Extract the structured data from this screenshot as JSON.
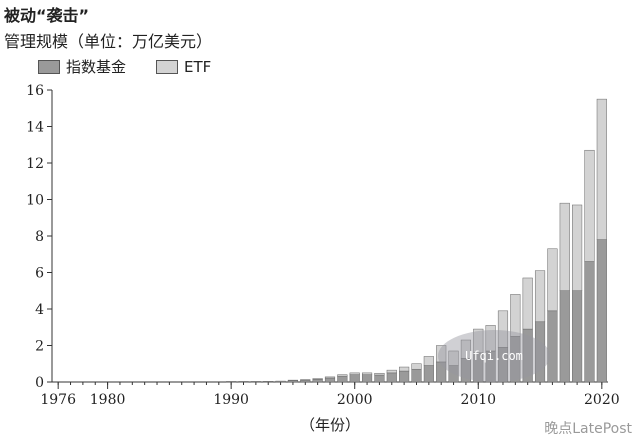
{
  "chart_data": {
    "type": "bar",
    "stacked": true,
    "title": "被动“袭击”",
    "ylabel": "管理规模（单位：万亿美元）",
    "xlabel": "（年份）",
    "ylim": [
      0,
      16
    ],
    "xlim": [
      1976,
      2021
    ],
    "yticks": [
      0,
      2,
      4,
      6,
      8,
      10,
      12,
      14,
      16
    ],
    "xticks": [
      1976,
      1980,
      1990,
      2000,
      2010,
      2020
    ],
    "x": [
      1976,
      1977,
      1978,
      1979,
      1980,
      1981,
      1982,
      1983,
      1984,
      1985,
      1986,
      1987,
      1988,
      1989,
      1990,
      1991,
      1992,
      1993,
      1994,
      1995,
      1996,
      1997,
      1998,
      1999,
      2000,
      2001,
      2002,
      2003,
      2004,
      2005,
      2006,
      2007,
      2008,
      2009,
      2010,
      2011,
      2012,
      2013,
      2014,
      2015,
      2016,
      2017,
      2018,
      2019,
      2020
    ],
    "series": [
      {
        "name": "指数基金",
        "color": "#9a9a9a",
        "values": [
          0,
          0,
          0,
          0,
          0,
          0,
          0,
          0,
          0,
          0,
          0,
          0,
          0,
          0,
          0.01,
          0.02,
          0.03,
          0.04,
          0.05,
          0.07,
          0.1,
          0.15,
          0.22,
          0.32,
          0.4,
          0.4,
          0.38,
          0.5,
          0.6,
          0.7,
          0.9,
          1.1,
          0.9,
          1.3,
          1.6,
          1.7,
          1.9,
          2.5,
          2.9,
          3.3,
          3.9,
          5.0,
          5.0,
          6.6,
          7.8
        ]
      },
      {
        "name": "ETF",
        "color": "#d3d3d3",
        "values": [
          0,
          0,
          0,
          0,
          0,
          0,
          0,
          0,
          0,
          0,
          0,
          0,
          0,
          0,
          0,
          0,
          0,
          0,
          0,
          0.02,
          0.03,
          0.04,
          0.06,
          0.08,
          0.1,
          0.1,
          0.1,
          0.15,
          0.22,
          0.3,
          0.5,
          0.9,
          0.8,
          1.0,
          1.3,
          1.4,
          2.0,
          2.3,
          2.8,
          2.8,
          3.4,
          4.8,
          4.7,
          6.1,
          7.7
        ]
      }
    ]
  },
  "watermark": {
    "center_text": "Ufqi.com",
    "corner_text": "晚点LatePost"
  }
}
